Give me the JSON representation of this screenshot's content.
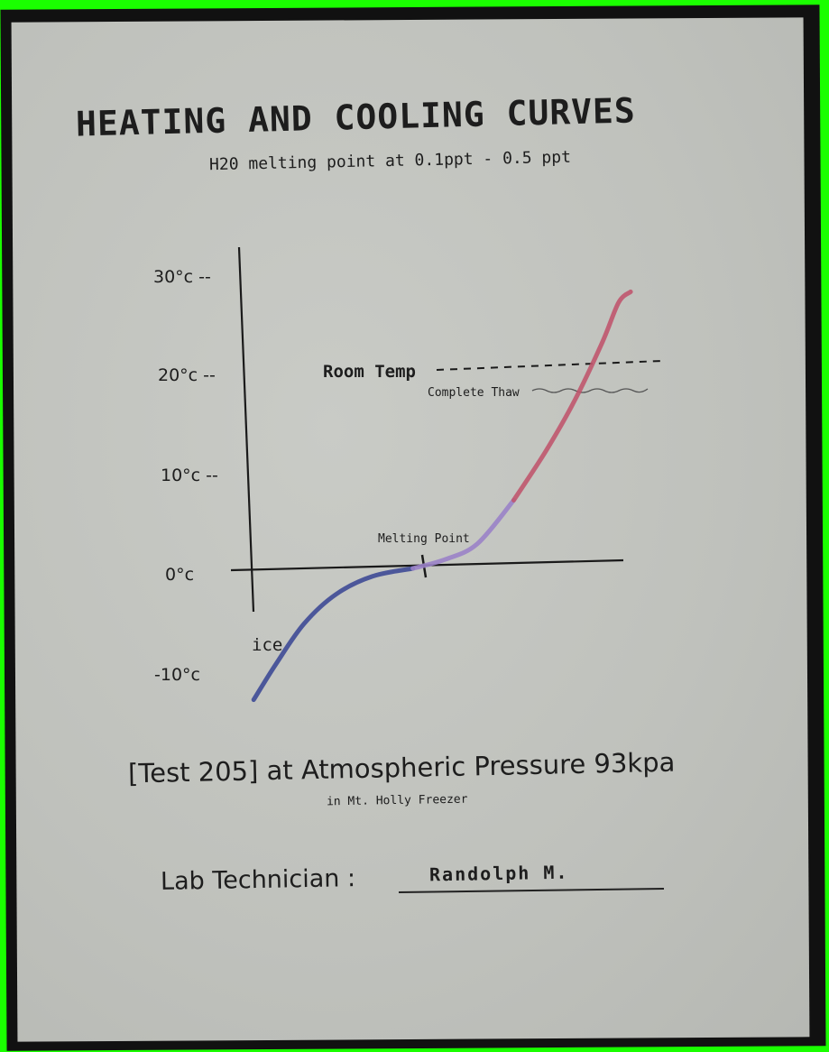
{
  "title": "HEATING AND COOLING CURVES",
  "subtitle": "H20 melting point at 0.1ppt -  0.5 ppt",
  "caption": "[Test 205] at Atmospheric Pressure 93kpa",
  "location": "in Mt. Holly Freezer",
  "technician": {
    "label": "Lab Technician :",
    "name": "Randolph  M."
  },
  "colors": {
    "paper": "#c4c6c1",
    "border": "#111111",
    "background": "#1aff00",
    "ice_curve": "#3e4a96",
    "melt_curve": "#9a82c8",
    "warm_curve": "#c0566e"
  },
  "chart_data": {
    "type": "line",
    "title": "HEATING AND COOLING CURVES",
    "xlabel": "",
    "ylabel": "",
    "y_ticks": [
      "30°c --",
      "20°c --",
      "10°c --",
      "0°c",
      "-10°c"
    ],
    "y_tick_values": [
      30,
      20,
      10,
      0,
      -10
    ],
    "ylim": [
      -13,
      30
    ],
    "xlim": [
      0,
      10
    ],
    "grid": false,
    "legend": "none",
    "series": [
      {
        "color": "#3e4a96",
        "x": [
          0.25,
          0.8,
          1.5,
          2.3,
          3.2,
          4.2
        ],
        "y": [
          -13.3,
          -9.7,
          -5.6,
          -2.6,
          -0.8,
          0
        ]
      },
      {
        "color": "#9a82c8",
        "x": [
          4.2,
          5.0,
          5.8,
          6.7
        ],
        "y": [
          0,
          0.9,
          2.5,
          6.9
        ]
      },
      {
        "color": "#c0566e",
        "x": [
          6.7,
          7.5,
          8.2,
          8.9,
          9.3,
          9.6
        ],
        "y": [
          6.9,
          11.9,
          16.9,
          22.9,
          26.9,
          28.0
        ]
      }
    ],
    "annotations": [
      {
        "text": "Room Temp",
        "value": 20
      },
      {
        "text": "Complete Thaw",
        "value": 18.5
      },
      {
        "text": "Melting Point",
        "value": 0
      },
      {
        "text": "ice",
        "value": -8
      }
    ]
  }
}
